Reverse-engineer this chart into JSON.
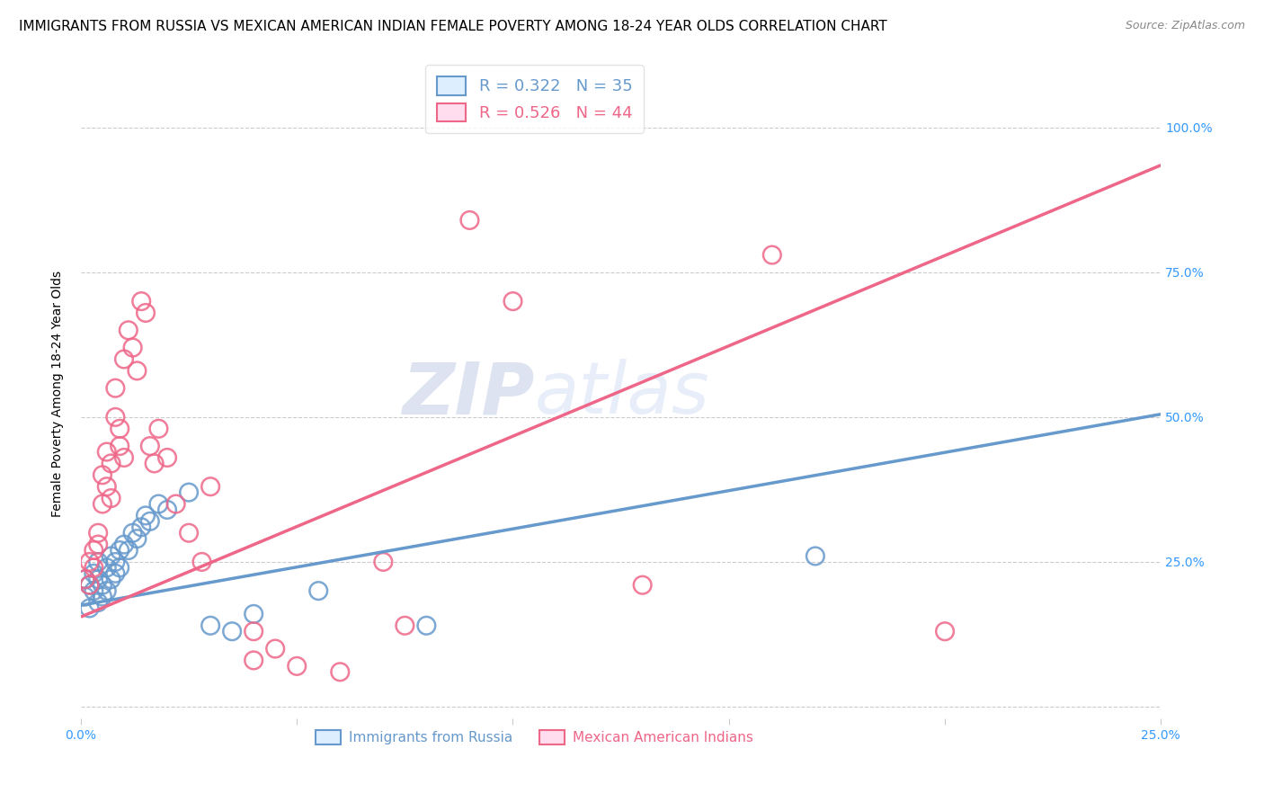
{
  "title": "IMMIGRANTS FROM RUSSIA VS MEXICAN AMERICAN INDIAN FEMALE POVERTY AMONG 18-24 YEAR OLDS CORRELATION CHART",
  "source": "Source: ZipAtlas.com",
  "ylabel": "Female Poverty Among 18-24 Year Olds",
  "xlim": [
    0,
    0.25
  ],
  "ylim": [
    -0.02,
    1.1
  ],
  "ytick_vals": [
    0.0,
    0.25,
    0.5,
    0.75,
    1.0
  ],
  "ytick_labels": [
    "",
    "25.0%",
    "50.0%",
    "75.0%",
    "100.0%"
  ],
  "xtick_vals": [
    0.0,
    0.05,
    0.1,
    0.15,
    0.2,
    0.25
  ],
  "xtick_labels": [
    "0.0%",
    "",
    "",
    "",
    "",
    "25.0%"
  ],
  "legend_labels_bottom": [
    "Immigrants from Russia",
    "Mexican American Indians"
  ],
  "blue_color": "#6699cc",
  "pink_color": "#ee6688",
  "blue_R": 0.322,
  "blue_N": 35,
  "pink_R": 0.526,
  "pink_N": 44,
  "watermark_zip": "ZIP",
  "watermark_atlas": "atlas",
  "blue_line_x": [
    0.0,
    0.25
  ],
  "blue_line_y": [
    0.175,
    0.505
  ],
  "pink_line_x": [
    0.0,
    0.25
  ],
  "pink_line_y": [
    0.155,
    0.935
  ],
  "blue_points": [
    [
      0.001,
      0.22
    ],
    [
      0.001,
      0.19
    ],
    [
      0.002,
      0.17
    ],
    [
      0.002,
      0.21
    ],
    [
      0.003,
      0.23
    ],
    [
      0.003,
      0.2
    ],
    [
      0.004,
      0.22
    ],
    [
      0.004,
      0.18
    ],
    [
      0.004,
      0.25
    ],
    [
      0.005,
      0.21
    ],
    [
      0.005,
      0.19
    ],
    [
      0.006,
      0.24
    ],
    [
      0.006,
      0.2
    ],
    [
      0.007,
      0.26
    ],
    [
      0.007,
      0.22
    ],
    [
      0.008,
      0.25
    ],
    [
      0.008,
      0.23
    ],
    [
      0.009,
      0.27
    ],
    [
      0.009,
      0.24
    ],
    [
      0.01,
      0.28
    ],
    [
      0.011,
      0.27
    ],
    [
      0.012,
      0.3
    ],
    [
      0.013,
      0.29
    ],
    [
      0.014,
      0.31
    ],
    [
      0.015,
      0.33
    ],
    [
      0.016,
      0.32
    ],
    [
      0.018,
      0.35
    ],
    [
      0.02,
      0.34
    ],
    [
      0.025,
      0.37
    ],
    [
      0.03,
      0.14
    ],
    [
      0.035,
      0.13
    ],
    [
      0.04,
      0.16
    ],
    [
      0.055,
      0.2
    ],
    [
      0.08,
      0.14
    ],
    [
      0.17,
      0.26
    ]
  ],
  "pink_points": [
    [
      0.001,
      0.22
    ],
    [
      0.002,
      0.25
    ],
    [
      0.002,
      0.21
    ],
    [
      0.003,
      0.27
    ],
    [
      0.003,
      0.24
    ],
    [
      0.004,
      0.3
    ],
    [
      0.004,
      0.28
    ],
    [
      0.005,
      0.35
    ],
    [
      0.005,
      0.4
    ],
    [
      0.006,
      0.38
    ],
    [
      0.006,
      0.44
    ],
    [
      0.007,
      0.42
    ],
    [
      0.007,
      0.36
    ],
    [
      0.008,
      0.5
    ],
    [
      0.008,
      0.55
    ],
    [
      0.009,
      0.45
    ],
    [
      0.009,
      0.48
    ],
    [
      0.01,
      0.43
    ],
    [
      0.01,
      0.6
    ],
    [
      0.011,
      0.65
    ],
    [
      0.012,
      0.62
    ],
    [
      0.013,
      0.58
    ],
    [
      0.014,
      0.7
    ],
    [
      0.015,
      0.68
    ],
    [
      0.016,
      0.45
    ],
    [
      0.017,
      0.42
    ],
    [
      0.018,
      0.48
    ],
    [
      0.02,
      0.43
    ],
    [
      0.022,
      0.35
    ],
    [
      0.025,
      0.3
    ],
    [
      0.028,
      0.25
    ],
    [
      0.03,
      0.38
    ],
    [
      0.04,
      0.08
    ],
    [
      0.04,
      0.13
    ],
    [
      0.045,
      0.1
    ],
    [
      0.05,
      0.07
    ],
    [
      0.06,
      0.06
    ],
    [
      0.07,
      0.25
    ],
    [
      0.075,
      0.14
    ],
    [
      0.09,
      0.84
    ],
    [
      0.1,
      0.7
    ],
    [
      0.13,
      0.21
    ],
    [
      0.16,
      0.78
    ],
    [
      0.2,
      0.13
    ]
  ],
  "background_color": "#ffffff",
  "grid_color": "#cccccc",
  "title_fontsize": 11,
  "axis_label_fontsize": 10,
  "tick_fontsize": 10
}
